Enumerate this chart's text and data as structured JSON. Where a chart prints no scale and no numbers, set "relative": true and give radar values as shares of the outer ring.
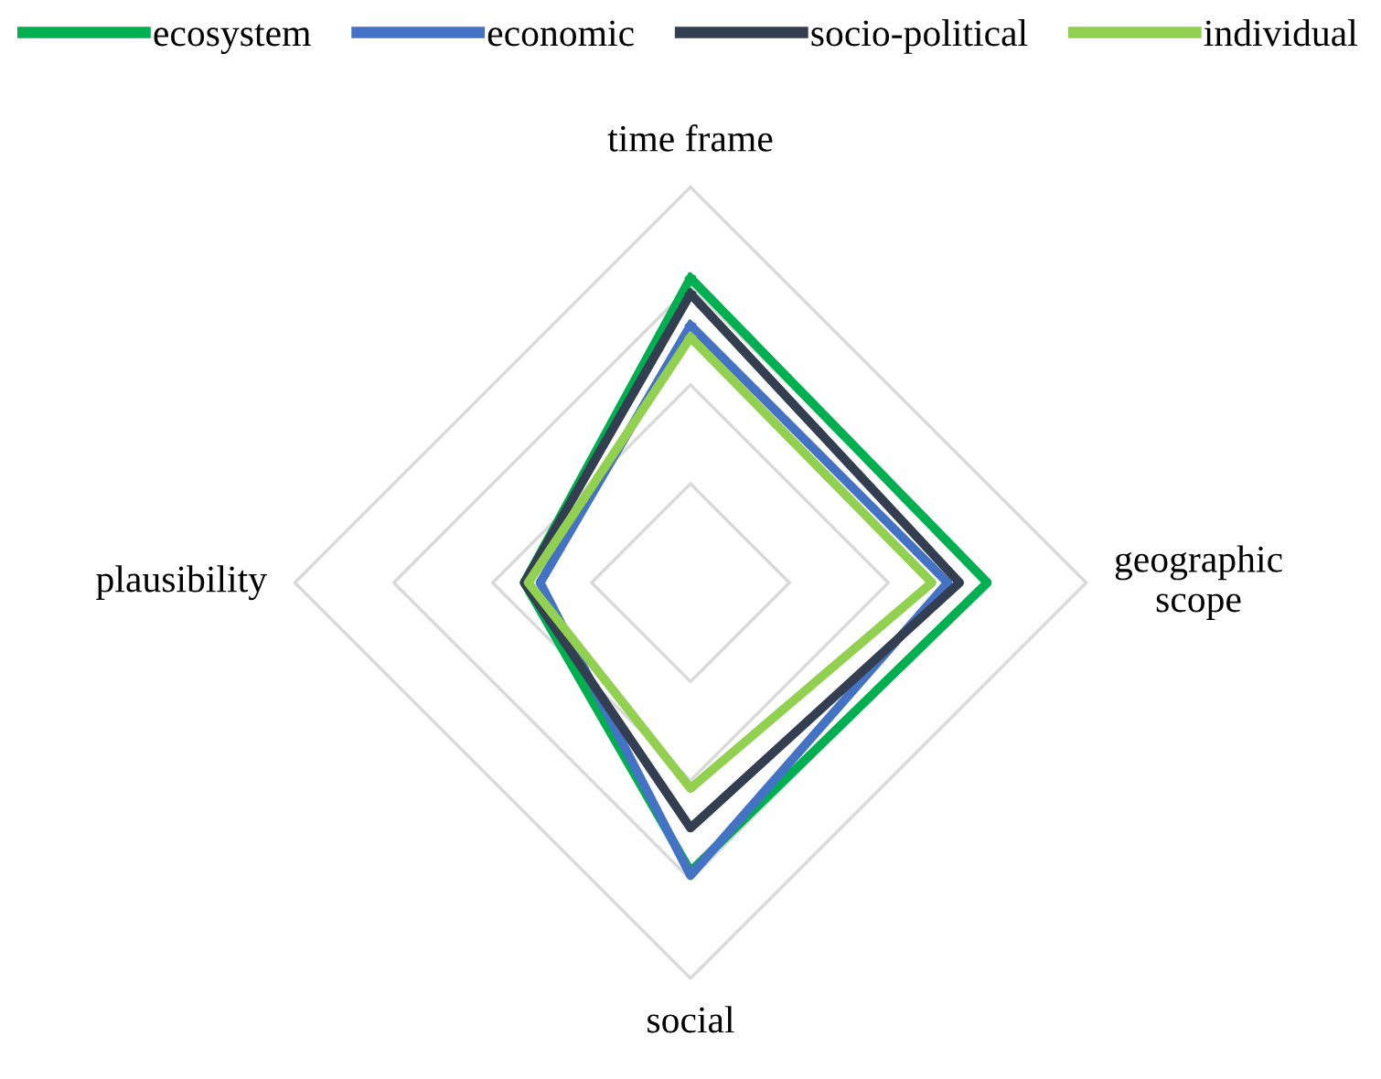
{
  "chart_data": {
    "type": "radar",
    "relative": true,
    "grid": true,
    "legend": "top",
    "line_style": "solid",
    "marker": "none",
    "categories": [
      "time frame",
      "geographic\nscope",
      "social",
      "plausibility"
    ],
    "series": [
      {
        "name": "ecosystem",
        "color": "#00b050",
        "values": [
          0.77,
          0.75,
          0.73,
          0.42
        ]
      },
      {
        "name": "economic",
        "color": "#4472c4",
        "values": [
          0.65,
          0.65,
          0.74,
          0.38
        ]
      },
      {
        "name": "socio-political",
        "color": "#333f50",
        "values": [
          0.73,
          0.68,
          0.62,
          0.42
        ]
      },
      {
        "name": "individual",
        "color": "#92d050",
        "values": [
          0.62,
          0.61,
          0.52,
          0.41
        ]
      }
    ]
  }
}
